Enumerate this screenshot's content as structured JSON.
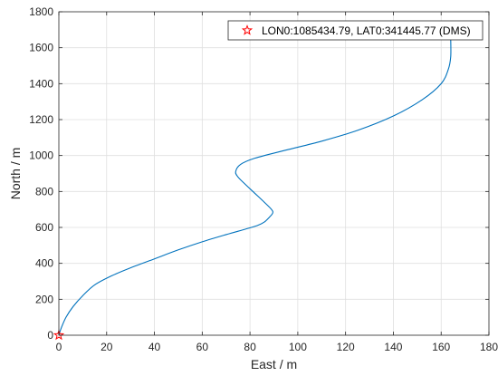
{
  "chart_data": {
    "type": "line",
    "title": "",
    "xlabel": "East / m",
    "ylabel": "North / m",
    "xlim": [
      0,
      180
    ],
    "ylim": [
      0,
      1800
    ],
    "xticks": [
      "0",
      "20",
      "40",
      "60",
      "80",
      "100",
      "120",
      "140",
      "160",
      "180"
    ],
    "yticks": [
      "0",
      "200",
      "400",
      "600",
      "800",
      "1000",
      "1200",
      "1400",
      "1600",
      "1800"
    ],
    "grid": true,
    "legend": {
      "position": "top-right",
      "entries": [
        "LON0:1085434.79, LAT0:341445.77 (DMS)"
      ]
    },
    "series": [
      {
        "color": "#0072BD",
        "x": [
          0,
          1,
          3,
          6,
          10,
          15,
          22,
          30,
          40,
          50,
          60,
          70,
          78,
          83,
          86,
          88,
          89.5,
          89,
          86,
          82,
          78,
          75,
          74,
          76,
          82,
          95,
          110,
          125,
          140,
          152,
          160,
          163,
          164,
          164
        ],
        "y": [
          0,
          40,
          100,
          160,
          220,
          280,
          330,
          375,
          425,
          475,
          520,
          560,
          590,
          610,
          630,
          655,
          680,
          700,
          740,
          790,
          840,
          880,
          910,
          950,
          985,
          1030,
          1080,
          1140,
          1220,
          1310,
          1400,
          1480,
          1550,
          1650
        ]
      }
    ],
    "markers": [
      {
        "label": "origin",
        "x": 0,
        "y": 0,
        "symbol": "star",
        "color": "#FF0000"
      }
    ]
  }
}
